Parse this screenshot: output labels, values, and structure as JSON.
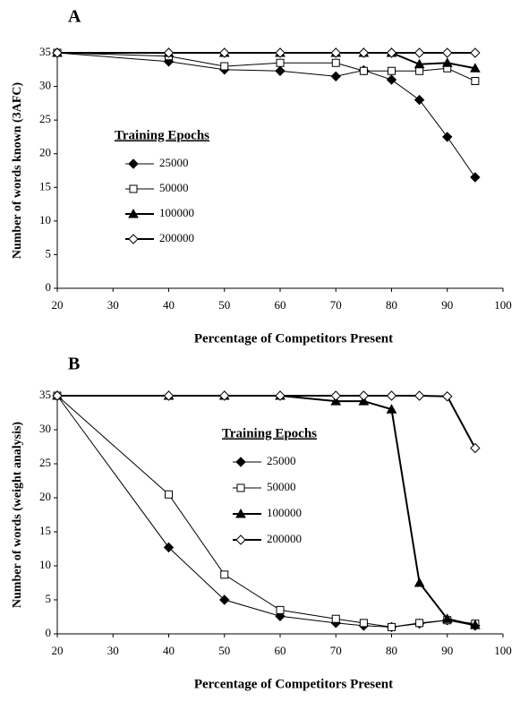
{
  "chart_data": [
    {
      "type": "line",
      "title": "A",
      "x_label": "Percentage of Competitors Present",
      "y_label": "Number of words known (3AFC)",
      "legend_title": "Training Epochs",
      "legend": "center-left",
      "grid": false,
      "x": [
        20,
        40,
        50,
        60,
        70,
        75,
        80,
        85,
        90,
        95
      ],
      "xlim": [
        20,
        100
      ],
      "xticks": [
        20,
        30,
        40,
        50,
        60,
        70,
        80,
        90,
        100
      ],
      "ylim": [
        0,
        35
      ],
      "yticks": [
        0,
        5,
        10,
        15,
        20,
        25,
        30,
        35
      ],
      "series": [
        {
          "name": "25000",
          "color": "#000000",
          "marker": "diamond",
          "filled": true,
          "line_width": 1,
          "values": [
            35,
            33.7,
            32.5,
            32.3,
            31.5,
            32.4,
            31,
            28,
            22.5,
            16.5
          ]
        },
        {
          "name": "50000",
          "color": "#000000",
          "marker": "square",
          "filled": false,
          "line_width": 1,
          "values": [
            35,
            34.5,
            33,
            33.5,
            33.5,
            32.3,
            32.3,
            32.3,
            32.7,
            30.8
          ]
        },
        {
          "name": "100000",
          "color": "#000000",
          "marker": "triangle",
          "filled": true,
          "line_width": 2,
          "values": [
            35,
            35,
            35,
            35,
            35,
            35,
            35,
            33.3,
            33.5,
            32.7
          ]
        },
        {
          "name": "200000",
          "color": "#000000",
          "marker": "diamond",
          "filled": false,
          "line_width": 2,
          "values": [
            35,
            35,
            35,
            35,
            35,
            35,
            35,
            35,
            35,
            35
          ]
        }
      ]
    },
    {
      "type": "line",
      "title": "B",
      "x_label": "Percentage of Competitors Present",
      "y_label": "Number of words (weight analysis)",
      "legend_title": "Training Epochs",
      "legend": "center",
      "grid": false,
      "x": [
        20,
        40,
        50,
        60,
        70,
        75,
        80,
        85,
        90,
        95
      ],
      "xlim": [
        20,
        100
      ],
      "xticks": [
        20,
        30,
        40,
        50,
        60,
        70,
        80,
        90,
        100
      ],
      "ylim": [
        0,
        35
      ],
      "yticks": [
        0,
        5,
        10,
        15,
        20,
        25,
        30,
        35
      ],
      "series": [
        {
          "name": "25000",
          "color": "#000000",
          "marker": "diamond",
          "filled": true,
          "line_width": 1,
          "values": [
            35,
            12.7,
            5,
            2.6,
            1.6,
            1.2,
            1,
            1.5,
            2,
            1.2
          ]
        },
        {
          "name": "50000",
          "color": "#000000",
          "marker": "square",
          "filled": false,
          "line_width": 1,
          "values": [
            35,
            20.5,
            8.7,
            3.5,
            2.2,
            1.6,
            1,
            1.6,
            2,
            1.5
          ]
        },
        {
          "name": "100000",
          "color": "#000000",
          "marker": "triangle",
          "filled": true,
          "line_width": 2,
          "values": [
            35,
            35,
            35,
            35,
            34.2,
            34.2,
            33,
            7.5,
            2.2,
            1.3
          ]
        },
        {
          "name": "200000",
          "color": "#000000",
          "marker": "diamond",
          "filled": false,
          "line_width": 2,
          "values": [
            35,
            35,
            35,
            35,
            35,
            35,
            35,
            35,
            34.9,
            27.3
          ]
        }
      ]
    }
  ]
}
